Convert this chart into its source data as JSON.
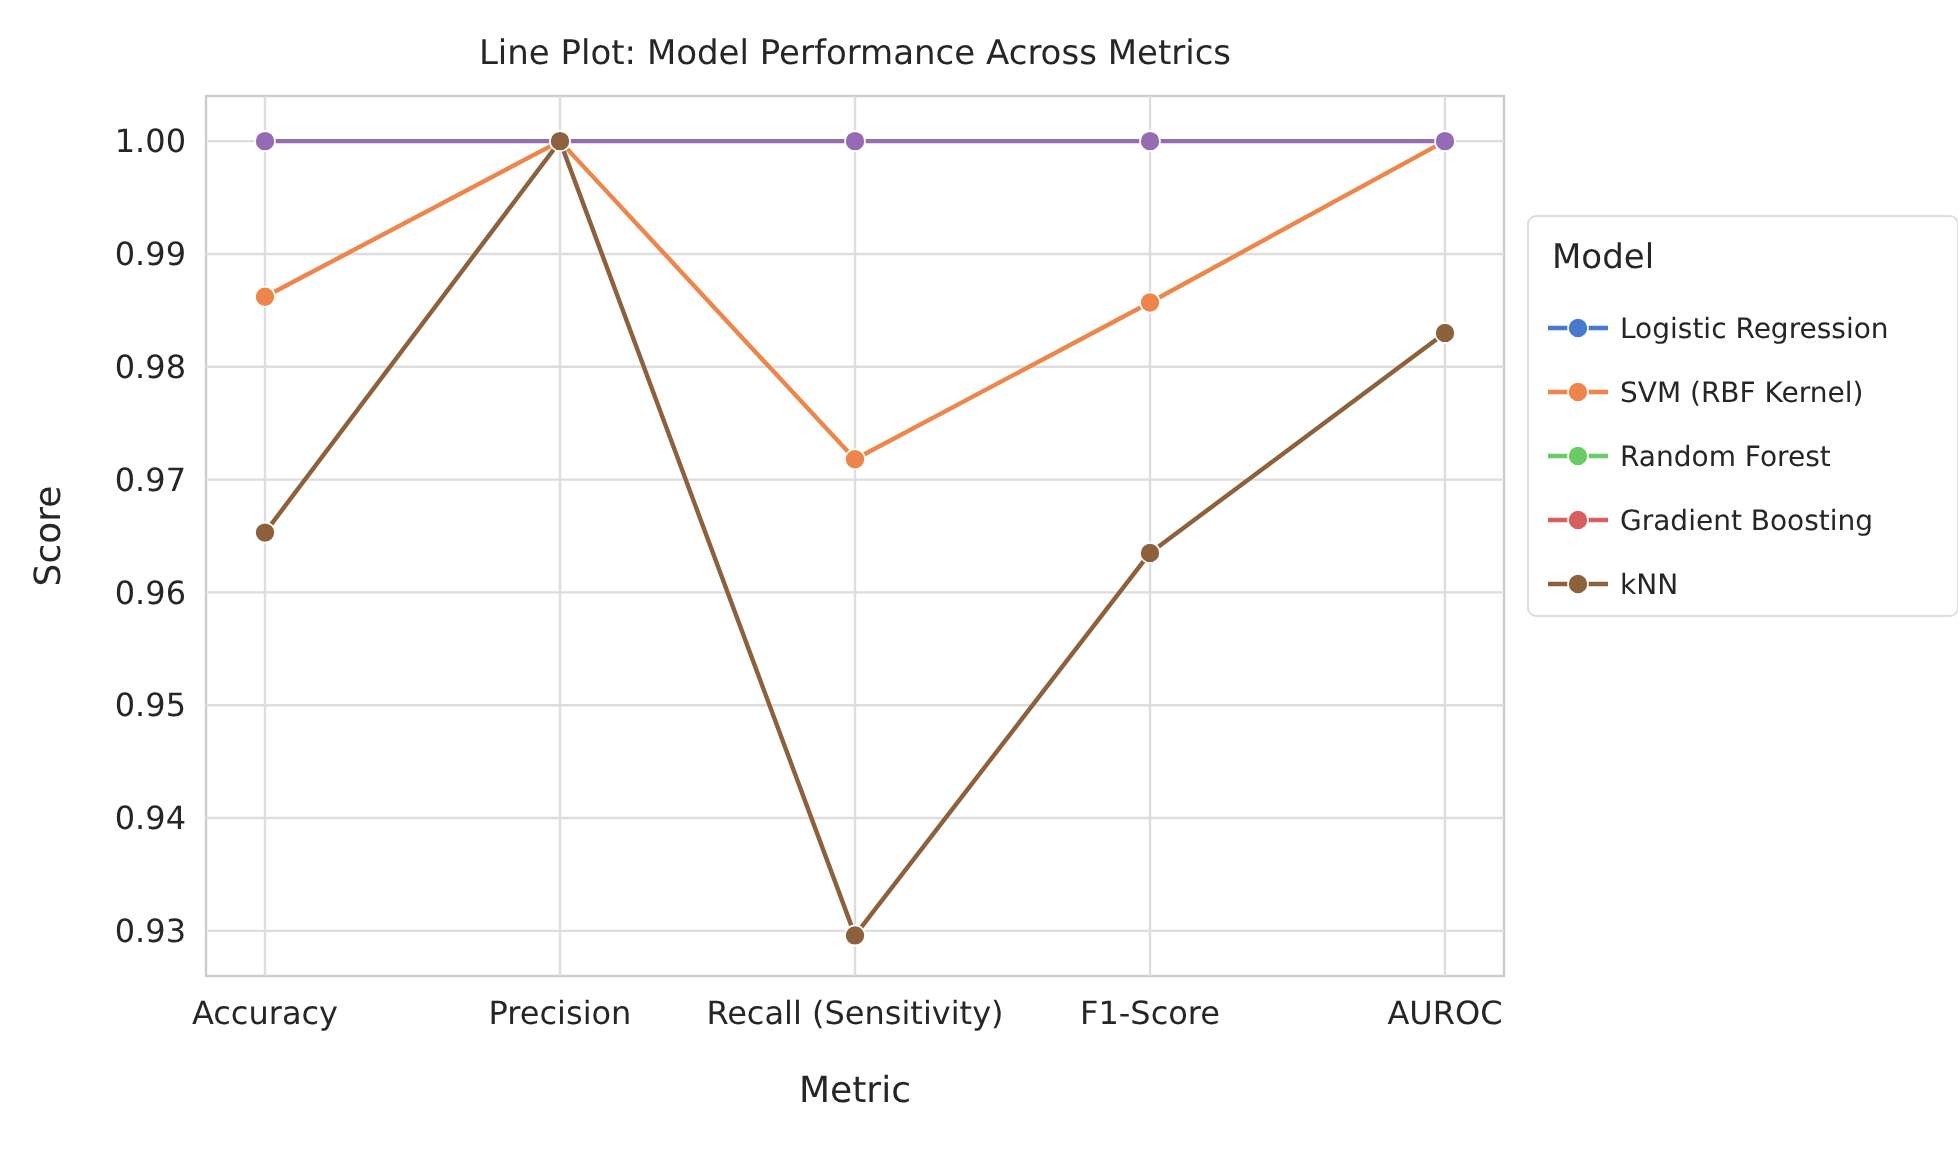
{
  "chart_data": {
    "type": "line",
    "title": "Line Plot: Model Performance Across Metrics",
    "xlabel": "Metric",
    "ylabel": "Score",
    "legend_title": "Model",
    "categories": [
      "Accuracy",
      "Precision",
      "Recall (Sensitivity)",
      "F1-Score",
      "AUROC"
    ],
    "series": [
      {
        "name": "Logistic Regression",
        "color": "#4878d0",
        "values": [
          null,
          null,
          null,
          null,
          null
        ]
      },
      {
        "name": "SVM (RBF Kernel)",
        "color": "#ee854a",
        "values": [
          0.9862,
          1.0,
          0.9718,
          0.9857,
          1.0
        ]
      },
      {
        "name": "Random Forest",
        "color": "#6acc64",
        "values": [
          null,
          null,
          null,
          null,
          null
        ]
      },
      {
        "name": "Gradient Boosting",
        "color": "#d65f5f",
        "values": [
          null,
          null,
          null,
          null,
          null
        ]
      },
      {
        "color": "#956cb4",
        "values": [
          1.0,
          1.0,
          1.0,
          1.0,
          1.0
        ]
      },
      {
        "name": "kNN",
        "color": "#8c613c",
        "values": [
          0.9653,
          1.0,
          0.9296,
          0.9635,
          0.983
        ]
      }
    ],
    "ylim": [
      0.926,
      1.004
    ],
    "yticks": [
      {
        "value": 0.93,
        "label": "0.93"
      },
      {
        "value": 0.94,
        "label": "0.94"
      },
      {
        "value": 0.95,
        "label": "0.95"
      },
      {
        "value": 0.96,
        "label": "0.96"
      },
      {
        "value": 0.97,
        "label": "0.97"
      },
      {
        "value": 0.98,
        "label": "0.98"
      },
      {
        "value": 0.99,
        "label": "0.99"
      },
      {
        "value": 1.0,
        "label": "1.00"
      }
    ],
    "grid": true,
    "legend": "right",
    "marker": "circle",
    "line_style": "solid"
  }
}
